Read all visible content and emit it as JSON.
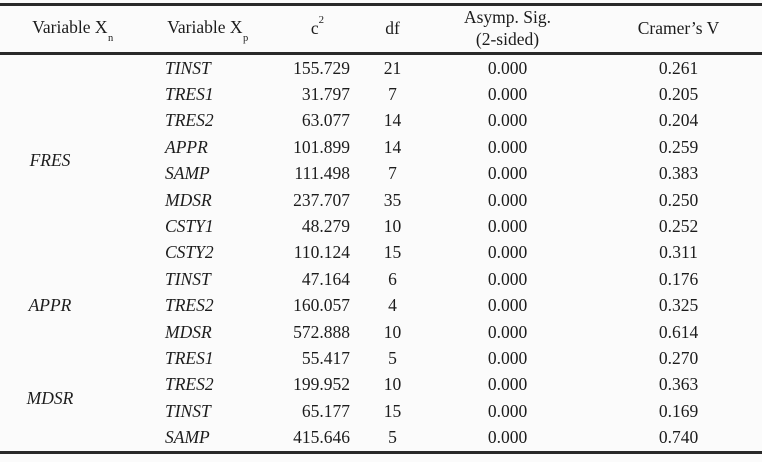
{
  "table": {
    "header": {
      "col1": {
        "text": "Variable X",
        "sub": "n"
      },
      "col2": {
        "text": "Variable X",
        "sub": "p"
      },
      "col3": {
        "text": "c",
        "sup": "2"
      },
      "col4": {
        "text": "df"
      },
      "col5": {
        "line1": "Asymp. Sig.",
        "line2": "(2-sided)"
      },
      "col6": {
        "text": "Cramer’s V"
      }
    },
    "groups": [
      {
        "label": "FRES",
        "rows": [
          {
            "variable_xp": "TINST",
            "chi_square": "155.729",
            "df": "21",
            "asymp_sig": "0.000",
            "cramers_v": "0.261"
          },
          {
            "variable_xp": "TRES1",
            "chi_square": "31.797",
            "df": "7",
            "asymp_sig": "0.000",
            "cramers_v": "0.205"
          },
          {
            "variable_xp": "TRES2",
            "chi_square": "63.077",
            "df": "14",
            "asymp_sig": "0.000",
            "cramers_v": "0.204"
          },
          {
            "variable_xp": "APPR",
            "chi_square": "101.899",
            "df": "14",
            "asymp_sig": "0.000",
            "cramers_v": "0.259"
          },
          {
            "variable_xp": "SAMP",
            "chi_square": "111.498",
            "df": "7",
            "asymp_sig": "0.000",
            "cramers_v": "0.383"
          },
          {
            "variable_xp": "MDSR",
            "chi_square": "237.707",
            "df": "35",
            "asymp_sig": "0.000",
            "cramers_v": "0.250"
          },
          {
            "variable_xp": "CSTY1",
            "chi_square": "48.279",
            "df": "10",
            "asymp_sig": "0.000",
            "cramers_v": "0.252"
          },
          {
            "variable_xp": "CSTY2",
            "chi_square": "110.124",
            "df": "15",
            "asymp_sig": "0.000",
            "cramers_v": "0.311"
          }
        ]
      },
      {
        "label": "APPR",
        "rows": [
          {
            "variable_xp": "TINST",
            "chi_square": "47.164",
            "df": "6",
            "asymp_sig": "0.000",
            "cramers_v": "0.176"
          },
          {
            "variable_xp": "TRES2",
            "chi_square": "160.057",
            "df": "4",
            "asymp_sig": "0.000",
            "cramers_v": "0.325"
          },
          {
            "variable_xp": "MDSR",
            "chi_square": "572.888",
            "df": "10",
            "asymp_sig": "0.000",
            "cramers_v": "0.614"
          }
        ]
      },
      {
        "label": "MDSR",
        "rows": [
          {
            "variable_xp": "TRES1",
            "chi_square": "55.417",
            "df": "5",
            "asymp_sig": "0.000",
            "cramers_v": "0.270"
          },
          {
            "variable_xp": "TRES2",
            "chi_square": "199.952",
            "df": "10",
            "asymp_sig": "0.000",
            "cramers_v": "0.363"
          },
          {
            "variable_xp": "TINST",
            "chi_square": "65.177",
            "df": "15",
            "asymp_sig": "0.000",
            "cramers_v": "0.169"
          },
          {
            "variable_xp": "SAMP",
            "chi_square": "415.646",
            "df": "5",
            "asymp_sig": "0.000",
            "cramers_v": "0.740"
          }
        ]
      }
    ]
  },
  "colors": {
    "text": "#1c1c1c",
    "background": "#fbfbfb",
    "rule": "#2a2a2a"
  }
}
